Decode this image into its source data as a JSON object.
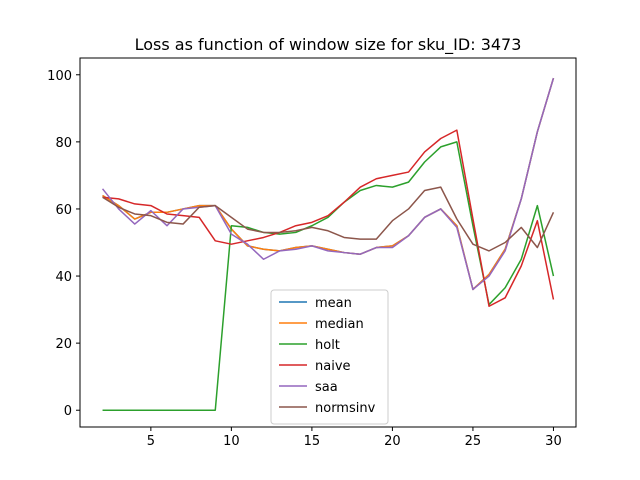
{
  "chart_data": {
    "type": "line",
    "title": "Loss as function of window size for sku_ID: 3473",
    "xlabel": "",
    "ylabel": "",
    "xlim": [
      0.6,
      31.4
    ],
    "ylim": [
      -5,
      105
    ],
    "xticks": [
      5,
      10,
      15,
      20,
      25,
      30
    ],
    "yticks": [
      0,
      20,
      40,
      60,
      80,
      100
    ],
    "grid": false,
    "legend_position": "lower center",
    "x": [
      2,
      3,
      4,
      5,
      6,
      7,
      8,
      9,
      10,
      11,
      12,
      13,
      14,
      15,
      16,
      17,
      18,
      19,
      20,
      21,
      22,
      23,
      24,
      25,
      26,
      27,
      28,
      29,
      30
    ],
    "series": [
      {
        "name": "mean",
        "color": "#1f77b4",
        "values": [
          64,
          61,
          57,
          59,
          59,
          60,
          61,
          61,
          54,
          49,
          48,
          47.5,
          48.5,
          49,
          48,
          47,
          46.5,
          48.5,
          49,
          52,
          57.5,
          60,
          55,
          36,
          40.5,
          48,
          63,
          83,
          99
        ]
      },
      {
        "name": "median",
        "color": "#ff7f0e",
        "values": [
          64,
          61,
          57,
          59,
          59,
          60,
          61,
          61,
          54,
          49,
          48,
          47.5,
          48.5,
          49,
          48,
          47,
          46.5,
          48.5,
          49,
          52,
          57.5,
          60,
          55,
          36,
          40.5,
          48,
          63,
          83,
          99
        ]
      },
      {
        "name": "holt",
        "color": "#2ca02c",
        "values": [
          0,
          0,
          0,
          0,
          0,
          0,
          0,
          0,
          55,
          54.5,
          53,
          52.5,
          53,
          55,
          57.5,
          62,
          65.5,
          67,
          66.5,
          68,
          74,
          78.5,
          80,
          55,
          31.5,
          36.5,
          45,
          61,
          40
        ]
      },
      {
        "name": "naive",
        "color": "#d62728",
        "values": [
          63.5,
          63,
          61.5,
          61,
          58.5,
          58,
          57.5,
          50.5,
          49.5,
          50.5,
          51.5,
          53,
          55,
          56,
          58,
          62,
          66.5,
          69,
          70,
          71,
          77,
          81,
          83.5,
          57,
          31,
          33.5,
          43,
          56.5,
          33
        ]
      },
      {
        "name": "saa",
        "color": "#9467bd",
        "values": [
          66,
          60,
          55.5,
          59.5,
          55,
          60,
          60.5,
          61,
          52.5,
          49.5,
          45,
          47.5,
          48,
          49,
          47.5,
          47,
          46.5,
          48.5,
          48.5,
          52,
          57.5,
          60,
          54.5,
          36,
          40,
          47.5,
          63,
          83,
          99
        ]
      },
      {
        "name": "normsinv",
        "color": "#8c564b",
        "values": [
          63.5,
          60.5,
          58.5,
          58,
          56,
          55.5,
          60.5,
          61,
          57.5,
          54,
          53,
          53,
          53.5,
          54.5,
          53.5,
          51.5,
          51,
          51,
          56.5,
          60,
          65.5,
          66.5,
          57,
          49.5,
          47.5,
          50,
          54.5,
          48.5,
          59
        ]
      }
    ]
  }
}
